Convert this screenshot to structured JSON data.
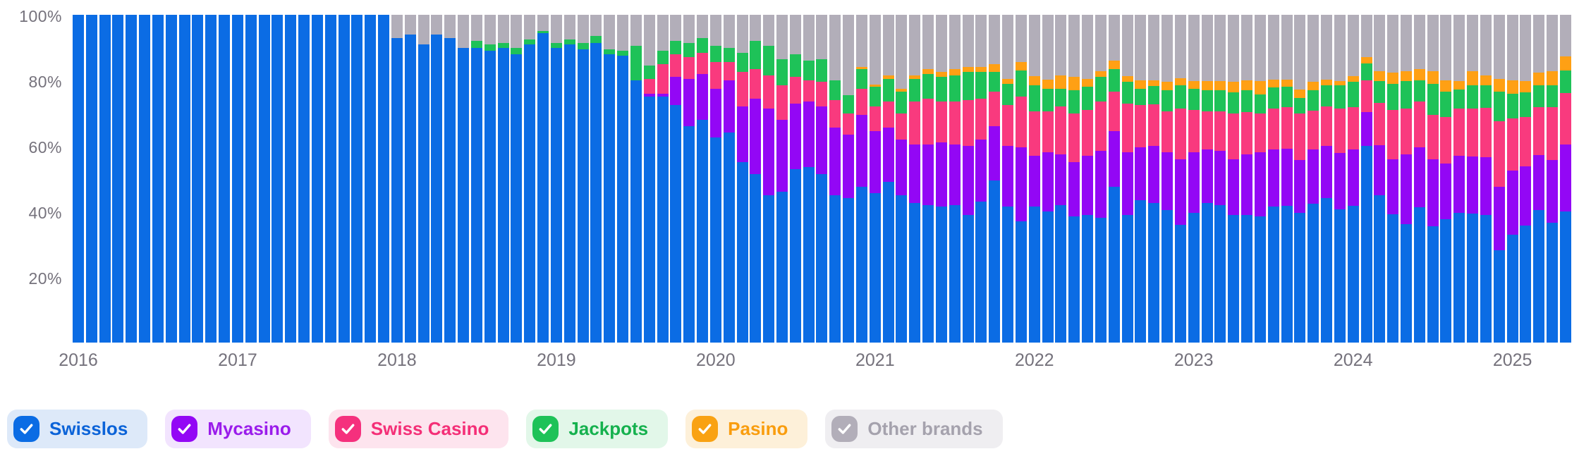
{
  "chart": {
    "y_ticks": [
      {
        "label": "100%",
        "value": 100
      },
      {
        "label": "80%",
        "value": 80
      },
      {
        "label": "60%",
        "value": 60
      },
      {
        "label": "40%",
        "value": 40
      },
      {
        "label": "20%",
        "value": 20
      }
    ],
    "x_ticks": [
      "2016",
      "2017",
      "2018",
      "2019",
      "2020",
      "2021",
      "2022",
      "2023",
      "2024",
      "2025"
    ]
  },
  "chart_data": {
    "type": "bar",
    "stacked": true,
    "unit": "percent",
    "ylim": [
      0,
      100
    ],
    "grid": false,
    "legend_position": "bottom",
    "x": [
      "2016-01",
      "2016-02",
      "2016-03",
      "2016-04",
      "2016-05",
      "2016-06",
      "2016-07",
      "2016-08",
      "2016-09",
      "2016-10",
      "2016-11",
      "2016-12",
      "2017-01",
      "2017-02",
      "2017-03",
      "2017-04",
      "2017-05",
      "2017-06",
      "2017-07",
      "2017-08",
      "2017-09",
      "2017-10",
      "2017-11",
      "2017-12",
      "2018-01",
      "2018-02",
      "2018-03",
      "2018-04",
      "2018-05",
      "2018-06",
      "2018-07",
      "2018-08",
      "2018-09",
      "2018-10",
      "2018-11",
      "2018-12",
      "2019-01",
      "2019-02",
      "2019-03",
      "2019-04",
      "2019-05",
      "2019-06",
      "2019-07",
      "2019-08",
      "2019-09",
      "2019-10",
      "2019-11",
      "2019-12",
      "2020-01",
      "2020-02",
      "2020-03",
      "2020-04",
      "2020-05",
      "2020-06",
      "2020-07",
      "2020-08",
      "2020-09",
      "2020-10",
      "2020-11",
      "2020-12",
      "2021-01",
      "2021-02",
      "2021-03",
      "2021-04",
      "2021-05",
      "2021-06",
      "2021-07",
      "2021-08",
      "2021-09",
      "2021-10",
      "2021-11",
      "2021-12",
      "2022-01",
      "2022-02",
      "2022-03",
      "2022-04",
      "2022-05",
      "2022-06",
      "2022-07",
      "2022-08",
      "2022-09",
      "2022-10",
      "2022-11",
      "2022-12",
      "2023-01",
      "2023-02",
      "2023-03",
      "2023-04",
      "2023-05",
      "2023-06",
      "2023-07",
      "2023-08",
      "2023-09",
      "2023-10",
      "2023-11",
      "2023-12",
      "2024-01",
      "2024-02",
      "2024-03",
      "2024-04",
      "2024-05",
      "2024-06",
      "2024-07",
      "2024-08",
      "2024-09",
      "2024-10",
      "2024-11",
      "2024-12",
      "2025-01",
      "2025-02",
      "2025-03",
      "2025-04",
      "2025-05"
    ],
    "series": [
      {
        "name": "Swisslos",
        "color": "#0b6ce4",
        "values": [
          100,
          100,
          100,
          100,
          100,
          100,
          100,
          100,
          100,
          100,
          100,
          100,
          100,
          100,
          100,
          100,
          100,
          100,
          100,
          100,
          100,
          100,
          100,
          100,
          93,
          94,
          91,
          94,
          93,
          90,
          90,
          89,
          90,
          88,
          91,
          94.5,
          90,
          91,
          89.5,
          91.5,
          88,
          87.5,
          80,
          75,
          75,
          72.5,
          66,
          68,
          62.5,
          64,
          55,
          51.5,
          45,
          46,
          53,
          53.5,
          51.5,
          45,
          44,
          47.5,
          45.5,
          49,
          45,
          42.5,
          42,
          41.5,
          42,
          39,
          43,
          49.5,
          41.5,
          37,
          41.5,
          40,
          42,
          38.5,
          39,
          38,
          47.5,
          39,
          43.5,
          42.5,
          40.5,
          36,
          39.5,
          42.5,
          42,
          39,
          39,
          38.5,
          41.5,
          41.7,
          39.5,
          42.3,
          44.1,
          40.6,
          41.7,
          60,
          44.9,
          39.1,
          36.2,
          41.3,
          35.5,
          37.6,
          39.5,
          39.3,
          38.9,
          28.2,
          33,
          35.8,
          40.4,
          36.6,
          40
        ]
      },
      {
        "name": "Mycasino",
        "color": "#9307f5",
        "values": [
          0,
          0,
          0,
          0,
          0,
          0,
          0,
          0,
          0,
          0,
          0,
          0,
          0,
          0,
          0,
          0,
          0,
          0,
          0,
          0,
          0,
          0,
          0,
          0,
          0,
          0,
          0,
          0,
          0,
          0,
          0,
          0,
          0,
          0,
          0,
          0,
          0,
          0,
          0,
          0,
          0,
          0,
          0,
          1,
          1,
          8.5,
          14.5,
          14,
          15,
          16,
          17,
          23,
          26.5,
          22,
          20,
          20,
          20.5,
          20.5,
          19.5,
          22,
          19,
          16.5,
          17,
          18,
          18.5,
          19.5,
          18.5,
          21,
          19,
          16.5,
          18.5,
          22.5,
          15.5,
          18,
          15.5,
          16.5,
          18,
          20.5,
          17,
          19,
          16,
          17.5,
          17.5,
          20,
          18.5,
          16.5,
          16.5,
          17,
          18.5,
          19.5,
          17.5,
          17.5,
          16.2,
          16.7,
          16,
          17.3,
          17.3,
          10.4,
          15.4,
          16.8,
          21.3,
          18.3,
          20.4,
          17,
          17.5,
          17.5,
          17.7,
          19.3,
          19.5,
          17.9,
          16.8,
          19.2,
          20.4
        ]
      },
      {
        "name": "Swiss Casino",
        "color": "#f93a7e",
        "values": [
          0,
          0,
          0,
          0,
          0,
          0,
          0,
          0,
          0,
          0,
          0,
          0,
          0,
          0,
          0,
          0,
          0,
          0,
          0,
          0,
          0,
          0,
          0,
          0,
          0,
          0,
          0,
          0,
          0,
          0,
          0,
          0,
          0,
          0,
          0,
          0,
          0,
          0,
          0,
          0,
          0,
          0,
          0,
          4.5,
          9,
          7,
          6.5,
          6.5,
          8,
          5.5,
          10.5,
          9,
          10,
          10.5,
          8,
          6.5,
          7.5,
          8.5,
          6.5,
          8,
          7.5,
          8,
          8,
          13,
          14,
          12.5,
          13,
          14,
          12.5,
          10.5,
          12.5,
          15.5,
          13.5,
          12.5,
          14.5,
          15,
          14,
          15,
          12,
          15,
          13,
          12.7,
          12.5,
          15.5,
          13,
          11.5,
          12,
          13.8,
          12.8,
          12,
          12.5,
          12.7,
          14.1,
          11.8,
          12,
          13.6,
          12.9,
          9.7,
          12.9,
          15.1,
          14,
          14,
          13.5,
          14.2,
          14.4,
          14.7,
          15,
          20.1,
          16,
          15.1,
          14.7,
          16.1,
          15.8
        ]
      },
      {
        "name": "Jackpots",
        "color": "#1ec258",
        "values": [
          0,
          0,
          0,
          0,
          0,
          0,
          0,
          0,
          0,
          0,
          0,
          0,
          0,
          0,
          0,
          0,
          0,
          0,
          0,
          0,
          0,
          0,
          0,
          0,
          0,
          0,
          0,
          0,
          0,
          0,
          2,
          2,
          1.5,
          2,
          1.5,
          0.5,
          1.5,
          1.5,
          2,
          2,
          1.5,
          1.5,
          10.5,
          4,
          4,
          4,
          4.5,
          4.5,
          5,
          4.5,
          6,
          8.5,
          9,
          8,
          7,
          6,
          7,
          6,
          5.5,
          6,
          6,
          7,
          6.5,
          7,
          7.5,
          7.5,
          8,
          8.5,
          8,
          6,
          6.5,
          8,
          8,
          7,
          5.5,
          7,
          7,
          7.5,
          7,
          6.5,
          5,
          5.6,
          6.5,
          7,
          6.5,
          6.5,
          6.5,
          6.5,
          6.8,
          5.8,
          6.3,
          6.1,
          4.9,
          6.1,
          6.3,
          7,
          7.6,
          5,
          6.5,
          8,
          8.2,
          6.5,
          9.6,
          7.8,
          5.9,
          6.9,
          7,
          8.9,
          7.5,
          7.5,
          6.5,
          6.5,
          6.8
        ]
      },
      {
        "name": "Pasino",
        "color": "#ffa014",
        "values": [
          0,
          0,
          0,
          0,
          0,
          0,
          0,
          0,
          0,
          0,
          0,
          0,
          0,
          0,
          0,
          0,
          0,
          0,
          0,
          0,
          0,
          0,
          0,
          0,
          0,
          0,
          0,
          0,
          0,
          0,
          0,
          0,
          0,
          0,
          0,
          0,
          0,
          0,
          0,
          0,
          0,
          0,
          0,
          0,
          0,
          0,
          0,
          0,
          0,
          0,
          0,
          0,
          0,
          0,
          0,
          0,
          0,
          0,
          0,
          0.5,
          0.7,
          1,
          1,
          1,
          1.5,
          1.5,
          2,
          1.5,
          1.5,
          2.5,
          1.5,
          2.5,
          2.8,
          2.7,
          4,
          4,
          2.5,
          1.7,
          2.5,
          1.7,
          2.6,
          1.7,
          2.6,
          2.2,
          2.4,
          2.8,
          2.8,
          3.2,
          3,
          3.9,
          2.5,
          2.3,
          2.6,
          2.6,
          1.9,
          1.3,
          1.7,
          1.9,
          3,
          3.3,
          3,
          3.3,
          3.7,
          3.4,
          2.6,
          4.3,
          2.9,
          3.9,
          4,
          3.5,
          3.9,
          4.3,
          4.3
        ]
      },
      {
        "name": "Other brands",
        "color": "#b2aeb9",
        "values": [
          0,
          0,
          0,
          0,
          0,
          0,
          0,
          0,
          0,
          0,
          0,
          0,
          0,
          0,
          0,
          0,
          0,
          0,
          0,
          0,
          0,
          0,
          0,
          0,
          7,
          6,
          9,
          6,
          7,
          10,
          8,
          9,
          8.5,
          10,
          7.5,
          5,
          8.5,
          7.5,
          8.5,
          6.5,
          10.5,
          11,
          9.5,
          15.5,
          11,
          8,
          8.5,
          7,
          9.5,
          10,
          11.5,
          8,
          9.5,
          13.5,
          12,
          14,
          13.5,
          20,
          24.5,
          16,
          21.3,
          18.5,
          22.5,
          18.5,
          16.5,
          17.5,
          16.5,
          16,
          16,
          15,
          19.5,
          14.5,
          18.7,
          19.8,
          18.5,
          19,
          19.5,
          17.3,
          14,
          18.8,
          19.9,
          20,
          20.4,
          19.3,
          20.1,
          20.2,
          20.2,
          20.5,
          19.9,
          20.3,
          19.7,
          19.7,
          22.7,
          20.5,
          19.7,
          20.2,
          18.8,
          13,
          17.3,
          17.7,
          17.3,
          16.6,
          17.3,
          20,
          20.1,
          17.3,
          18.5,
          19.6,
          20,
          20.2,
          17.7,
          17.3,
          12.7
        ]
      }
    ]
  },
  "legend": {
    "items": [
      {
        "label": "Swisslos",
        "checked": true,
        "checkbox_color": "#0b6ce4",
        "pill_bg": "#dde9f9",
        "text_color": "#0b63d8"
      },
      {
        "label": "Mycasino",
        "checked": true,
        "checkbox_color": "#9307f5",
        "pill_bg": "#f2e4fe",
        "text_color": "#9a1ceb"
      },
      {
        "label": "Swiss Casino",
        "checked": true,
        "checkbox_color": "#f5307d",
        "pill_bg": "#fde4ee",
        "text_color": "#f42f77"
      },
      {
        "label": "Jackpots",
        "checked": true,
        "checkbox_color": "#1ec258",
        "pill_bg": "#e2f7e9",
        "text_color": "#15b14e"
      },
      {
        "label": "Pasino",
        "checked": true,
        "checkbox_color": "#f9a213",
        "pill_bg": "#fdf0d9",
        "text_color": "#f99d0e"
      },
      {
        "label": "Other brands",
        "checked": true,
        "checkbox_color": "#b2aeb9",
        "pill_bg": "#efeef1",
        "text_color": "#a5a2ad"
      }
    ]
  }
}
